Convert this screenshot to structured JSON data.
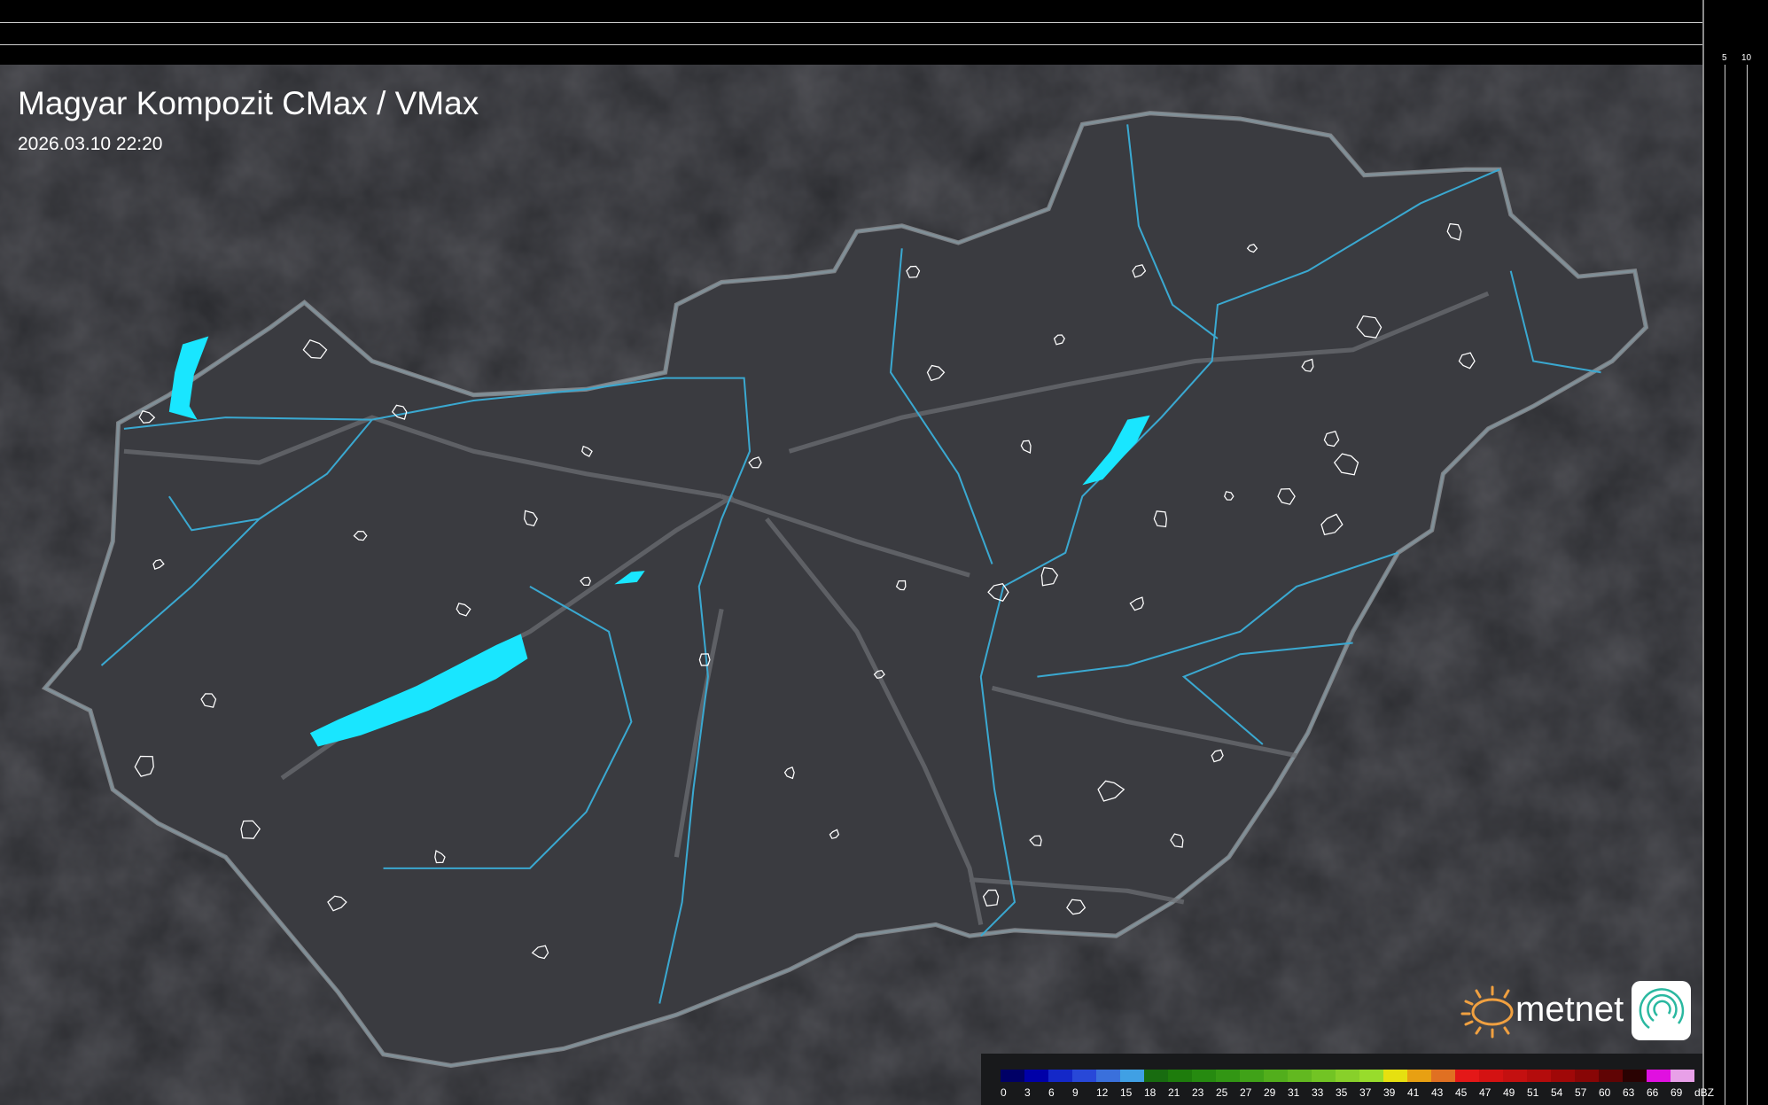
{
  "header": {
    "title": "Magyar Kompozit CMax / VMax",
    "timestamp": "2026.03.10 22:20"
  },
  "axes": {
    "vertical_ticks": [
      "10",
      "5"
    ],
    "horizontal_ticks": [
      "5",
      "10"
    ]
  },
  "logo": {
    "brand": "metnet",
    "accent": "#f0a040"
  },
  "legend": {
    "unit": "dBZ",
    "labels": [
      "0",
      "3",
      "6",
      "9",
      "12",
      "15",
      "18",
      "21",
      "23",
      "25",
      "27",
      "29",
      "31",
      "33",
      "35",
      "37",
      "39",
      "41",
      "43",
      "45",
      "47",
      "49",
      "51",
      "54",
      "57",
      "60",
      "63",
      "66",
      "69"
    ],
    "colors": [
      "#000066",
      "#0000a8",
      "#1428c8",
      "#2848d8",
      "#3a70dc",
      "#40a0e4",
      "#186c10",
      "#1e7c0c",
      "#268a10",
      "#329614",
      "#40a218",
      "#52ae1c",
      "#62b820",
      "#72c424",
      "#88d02a",
      "#98dc2c",
      "#e6e010",
      "#e8a012",
      "#e07022",
      "#e41818",
      "#d41212",
      "#c41010",
      "#b40c0c",
      "#a00808",
      "#880606",
      "#600404",
      "#2a0202",
      "#e010e0",
      "#e8a0e8",
      "#90e8e8"
    ]
  },
  "colors": {
    "background": "#2a2b2f",
    "country": "#3a3b40",
    "border": "#8a8d92",
    "water": "#19e6ff",
    "river": "#3aa8d0"
  }
}
